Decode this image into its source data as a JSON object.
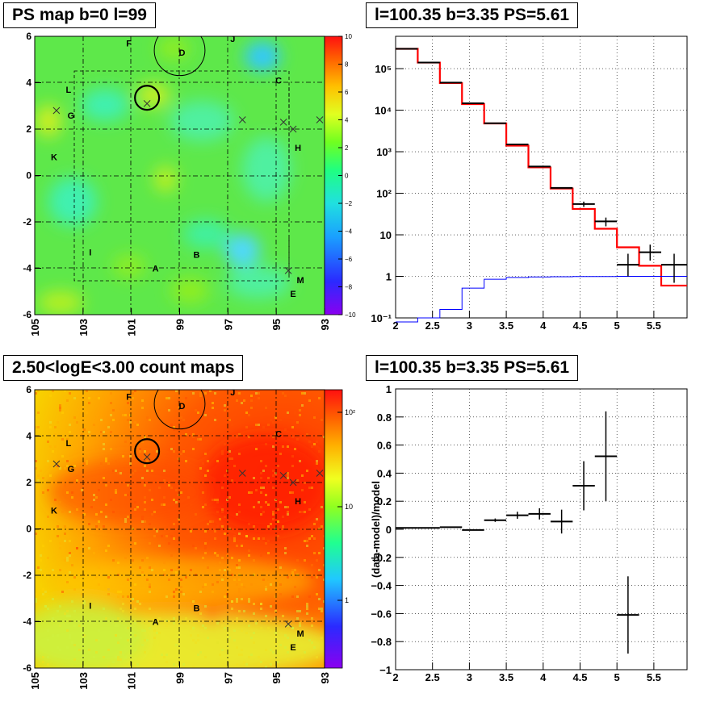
{
  "panels": {
    "ps_map": {
      "title": "PS map b=0 l=99"
    },
    "count_map": {
      "title": "2.50<logE<3.00 count maps"
    },
    "spectrum": {
      "title": "l=100.35 b=3.35 PS=5.61"
    },
    "residual": {
      "title": "l=100.35 b=3.35 PS=5.61"
    }
  },
  "colors": {
    "data": "#000000",
    "model": "#ff0000",
    "ps_component": "#0000ff",
    "grid": "#000000"
  },
  "chart_data": [
    {
      "type": "heatmap",
      "title": "PS map b=0 l=99",
      "x_ticks": [
        "105",
        "103",
        "101",
        "99",
        "97",
        "95",
        "93"
      ],
      "y_ticks": [
        "6",
        "4",
        "2",
        "0",
        "-2",
        "-4",
        "-6"
      ],
      "xlim": [
        105,
        93
      ],
      "ylim": [
        -6,
        6
      ],
      "colorbar_ticks": [
        "10",
        "8",
        "6",
        "4",
        "2",
        "0",
        "−2",
        "−4",
        "−6",
        "−8",
        "−10"
      ],
      "colorbar_range": [
        -10,
        10
      ],
      "labels": [
        {
          "text": "F",
          "l": 101.1,
          "b": 5.7
        },
        {
          "text": "D",
          "l": 98.9,
          "b": 5.3
        },
        {
          "text": "J",
          "l": 96.8,
          "b": 5.9
        },
        {
          "text": "C",
          "l": 94.9,
          "b": 4.1
        },
        {
          "text": "L",
          "l": 103.6,
          "b": 3.7
        },
        {
          "text": "G",
          "l": 103.5,
          "b": 2.6
        },
        {
          "text": "H",
          "l": 94.1,
          "b": 1.2
        },
        {
          "text": "K",
          "l": 104.2,
          "b": 0.8
        },
        {
          "text": "I",
          "l": 102.7,
          "b": -3.3
        },
        {
          "text": "B",
          "l": 98.3,
          "b": -3.4
        },
        {
          "text": "A",
          "l": 100.0,
          "b": -4.0
        },
        {
          "text": "M",
          "l": 94.0,
          "b": -4.5
        },
        {
          "text": "E",
          "l": 94.3,
          "b": -5.1
        }
      ],
      "markers": [
        {
          "l": 104.1,
          "b": 2.8
        },
        {
          "l": 100.35,
          "b": 3.1
        },
        {
          "l": 96.4,
          "b": 2.4
        },
        {
          "l": 94.7,
          "b": 2.3
        },
        {
          "l": 94.3,
          "b": 2.0
        },
        {
          "l": 93.2,
          "b": 2.4
        },
        {
          "l": 94.5,
          "b": -4.1
        }
      ],
      "circles": [
        {
          "l": 99.0,
          "b": 5.4,
          "r_deg": 1.05
        },
        {
          "l": 100.35,
          "b": 3.35,
          "r_deg": 0.5
        }
      ]
    },
    {
      "type": "heatmap",
      "title": "2.50<logE<3.00 count maps",
      "x_ticks": [
        "105",
        "103",
        "101",
        "99",
        "97",
        "95",
        "93"
      ],
      "y_ticks": [
        "6",
        "4",
        "2",
        "0",
        "-2",
        "-4",
        "-6"
      ],
      "xlim": [
        105,
        93
      ],
      "ylim": [
        -6,
        6
      ],
      "colorbar_ticks": [
        "10²",
        "10",
        "1"
      ],
      "colorbar_scale": "log"
    },
    {
      "type": "line",
      "title": "l=100.35 b=3.35 PS=5.61",
      "x_ticks": [
        "2",
        "2.5",
        "3",
        "3.5",
        "4",
        "4.5",
        "5",
        "5.5"
      ],
      "y_ticks": [
        "10⁻¹",
        "1",
        "10",
        "10²",
        "10³",
        "10⁴",
        "10⁵"
      ],
      "xlim": [
        2,
        5.95
      ],
      "ylim": [
        0.1,
        600000
      ],
      "yscale": "log",
      "grid": true,
      "bin_edges": [
        2.0,
        2.3,
        2.6,
        2.9,
        3.2,
        3.5,
        3.8,
        4.1,
        4.4,
        4.7,
        5.0,
        5.3,
        5.6,
        5.95
      ],
      "series": [
        {
          "role": "model",
          "values": [
            300000,
            140000,
            45000,
            14000,
            4800,
            1400,
            420,
            130,
            42,
            14,
            5,
            1.8,
            0.6
          ]
        },
        {
          "role": "ps_component",
          "values": [
            0.08,
            0.1,
            0.16,
            0.52,
            0.85,
            0.94,
            0.97,
            0.98,
            0.99,
            0.99,
            1.0,
            1.0,
            1.0
          ]
        },
        {
          "role": "data",
          "values": [
            300000,
            140000,
            46000,
            14700,
            4850,
            1500,
            440,
            135,
            55,
            21,
            1.9,
            3.8,
            1.9
          ],
          "err_low": [
            0,
            0,
            0,
            0,
            0,
            0,
            0,
            0,
            8,
            5,
            0.9,
            1.4,
            1.2
          ],
          "err_high": [
            0,
            0,
            0,
            0,
            0,
            0,
            0,
            0,
            8,
            5,
            1.6,
            2.0,
            1.6
          ]
        }
      ]
    },
    {
      "type": "scatter",
      "title": "l=100.35 b=3.35 PS=5.61",
      "ylabel": "(data-model)/model",
      "x_ticks": [
        "2",
        "2.5",
        "3",
        "3.5",
        "4",
        "4.5",
        "5",
        "5.5"
      ],
      "y_ticks": [
        "1",
        "0.8",
        "0.6",
        "0.4",
        "0.2",
        "0",
        "−0.2",
        "−0.4",
        "−0.6",
        "−0.8",
        "−1"
      ],
      "xlim": [
        2,
        5.95
      ],
      "ylim": [
        -1,
        1
      ],
      "grid": true,
      "points": [
        {
          "x": 2.15,
          "dx": 0.15,
          "y": 0.01,
          "err": 0.0
        },
        {
          "x": 2.45,
          "dx": 0.15,
          "y": 0.01,
          "err": 0.0
        },
        {
          "x": 2.75,
          "dx": 0.15,
          "y": 0.015,
          "err": 0.0
        },
        {
          "x": 3.05,
          "dx": 0.15,
          "y": -0.005,
          "err": 0.0
        },
        {
          "x": 3.35,
          "dx": 0.15,
          "y": 0.065,
          "err": 0.012
        },
        {
          "x": 3.65,
          "dx": 0.15,
          "y": 0.1,
          "err": 0.025
        },
        {
          "x": 3.95,
          "dx": 0.15,
          "y": 0.11,
          "err": 0.04
        },
        {
          "x": 4.25,
          "dx": 0.15,
          "y": 0.055,
          "err": 0.085
        },
        {
          "x": 4.55,
          "dx": 0.15,
          "y": 0.31,
          "err": 0.175
        },
        {
          "x": 4.85,
          "dx": 0.15,
          "y": 0.52,
          "err": 0.32
        },
        {
          "x": 5.15,
          "dx": 0.15,
          "y": -0.61,
          "err": 0.275
        }
      ]
    }
  ]
}
